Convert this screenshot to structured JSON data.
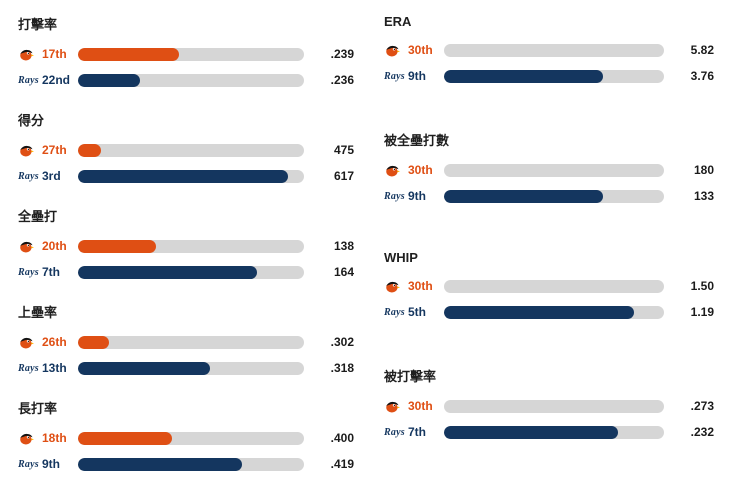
{
  "colors": {
    "orange": "#df4f14",
    "navy": "#14365f",
    "track": "#d6d6d6",
    "beak_yellow": "#ffb300"
  },
  "teams": {
    "orioles": {
      "name": "Orioles",
      "logo_icon": "orioles-bird-logo-icon"
    },
    "rays": {
      "name": "Rays",
      "logo_text": "Rays",
      "logo_icon": "rays-wordmark-logo-icon"
    }
  },
  "chart_data": [
    {
      "type": "bar",
      "column": "left",
      "title": "打擊率",
      "rows": [
        {
          "team": "orioles",
          "rank": "17th",
          "value": ".239",
          "fill_pct": 44.8
        },
        {
          "team": "rays",
          "rank": "22nd",
          "value": ".236",
          "fill_pct": 27.6
        }
      ]
    },
    {
      "type": "bar",
      "column": "left",
      "title": "得分",
      "rows": [
        {
          "team": "orioles",
          "rank": "27th",
          "value": "475",
          "fill_pct": 10.3
        },
        {
          "team": "rays",
          "rank": "3rd",
          "value": "617",
          "fill_pct": 93.1
        }
      ]
    },
    {
      "type": "bar",
      "column": "left",
      "title": "全壘打",
      "rows": [
        {
          "team": "orioles",
          "rank": "20th",
          "value": "138",
          "fill_pct": 34.5
        },
        {
          "team": "rays",
          "rank": "7th",
          "value": "164",
          "fill_pct": 79.3
        }
      ]
    },
    {
      "type": "bar",
      "column": "left",
      "title": "上壘率",
      "rows": [
        {
          "team": "orioles",
          "rank": "26th",
          "value": ".302",
          "fill_pct": 13.8
        },
        {
          "team": "rays",
          "rank": "13th",
          "value": ".318",
          "fill_pct": 58.6
        }
      ]
    },
    {
      "type": "bar",
      "column": "left",
      "title": "長打率",
      "rows": [
        {
          "team": "orioles",
          "rank": "18th",
          "value": ".400",
          "fill_pct": 41.4
        },
        {
          "team": "rays",
          "rank": "9th",
          "value": ".419",
          "fill_pct": 72.4
        }
      ]
    },
    {
      "type": "bar",
      "column": "right",
      "title": "ERA",
      "rows": [
        {
          "team": "orioles",
          "rank": "30th",
          "value": "5.82",
          "fill_pct": 0
        },
        {
          "team": "rays",
          "rank": "9th",
          "value": "3.76",
          "fill_pct": 72.4
        }
      ]
    },
    {
      "type": "bar",
      "column": "right",
      "title": "被全壘打數",
      "rows": [
        {
          "team": "orioles",
          "rank": "30th",
          "value": "180",
          "fill_pct": 0
        },
        {
          "team": "rays",
          "rank": "9th",
          "value": "133",
          "fill_pct": 72.4
        }
      ]
    },
    {
      "type": "bar",
      "column": "right",
      "title": "WHIP",
      "rows": [
        {
          "team": "orioles",
          "rank": "30th",
          "value": "1.50",
          "fill_pct": 0
        },
        {
          "team": "rays",
          "rank": "5th",
          "value": "1.19",
          "fill_pct": 86.2
        }
      ]
    },
    {
      "type": "bar",
      "column": "right",
      "title": "被打擊率",
      "rows": [
        {
          "team": "orioles",
          "rank": "30th",
          "value": ".273",
          "fill_pct": 0
        },
        {
          "team": "rays",
          "rank": "7th",
          "value": ".232",
          "fill_pct": 79.3
        }
      ]
    }
  ]
}
